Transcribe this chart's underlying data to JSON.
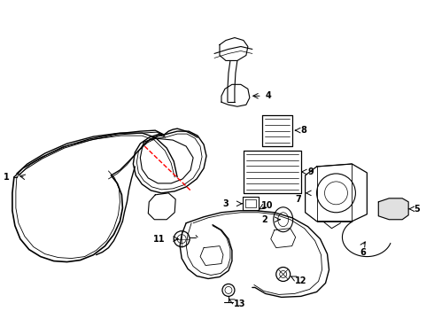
{
  "background_color": "#ffffff",
  "line_color": "#000000",
  "red_dashed_color": "#ff0000",
  "fig_width": 4.9,
  "fig_height": 3.6,
  "dpi": 100
}
